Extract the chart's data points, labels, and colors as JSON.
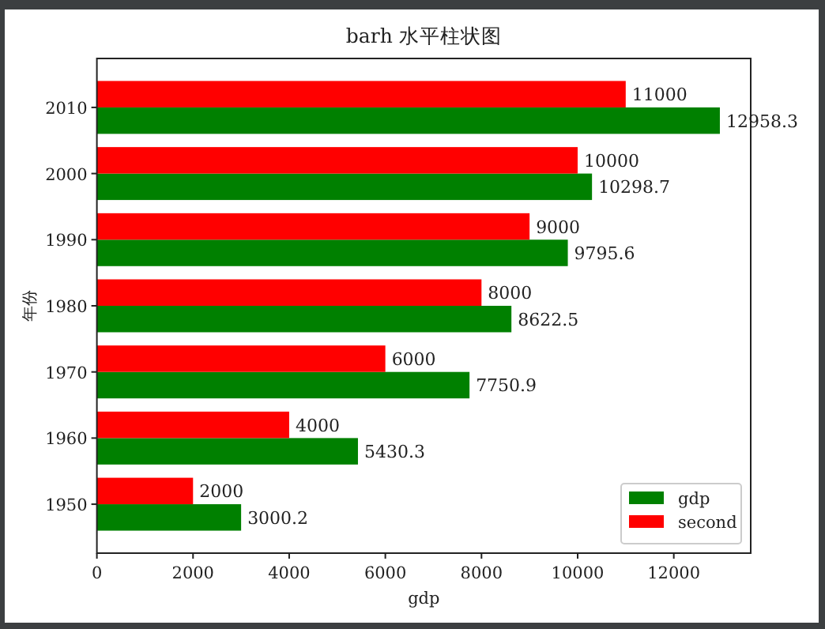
{
  "chart_data": {
    "type": "bar",
    "orientation": "horizontal",
    "title": "barh 水平柱状图",
    "xlabel": "gdp",
    "ylabel": "年份",
    "categories": [
      "2010",
      "2000",
      "1990",
      "1980",
      "1970",
      "1960",
      "1950"
    ],
    "series": [
      {
        "name": "gdp",
        "color": "#008000",
        "values": [
          12958.3,
          10298.7,
          9795.6,
          8622.5,
          7750.9,
          5430.3,
          3000.2
        ]
      },
      {
        "name": "second",
        "color": "#ff0000",
        "values": [
          11000,
          10000,
          9000,
          8000,
          6000,
          4000,
          2000
        ]
      }
    ],
    "xlim": [
      0,
      13600
    ],
    "xticks": [
      0,
      2000,
      4000,
      6000,
      8000,
      10000,
      12000
    ],
    "data_labels": true,
    "legend": "bottom right"
  }
}
